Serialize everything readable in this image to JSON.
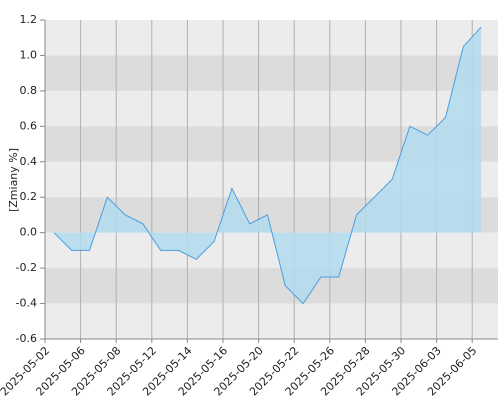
{
  "chart_data": {
    "type": "area",
    "y_label": "[Zmiany %]",
    "categories": [
      "2025-05-02",
      null,
      "2025-05-06",
      null,
      "2025-05-08",
      null,
      "2025-05-12",
      null,
      "2025-05-14",
      null,
      "2025-05-16",
      null,
      "2025-05-20",
      null,
      "2025-05-22",
      null,
      "2025-05-26",
      null,
      "2025-05-28",
      null,
      "2025-05-30",
      null,
      "2025-06-03",
      null,
      "2025-06-05"
    ],
    "values": [
      0,
      -0.1,
      -0.1,
      0.2,
      0.1,
      0.05,
      -0.1,
      -0.1,
      -0.15,
      -0.05,
      0.25,
      0.05,
      0.1,
      -0.3,
      -0.4,
      -0.25,
      -0.25,
      0.1,
      0.2,
      0.3,
      0.6,
      0.55,
      0.65,
      1.05,
      1.16
    ],
    "color": "#4a9ee0",
    "fill": "#b3dcef",
    "ylim": [
      -0.6,
      1.2
    ],
    "yticks": [
      1.2,
      {
        "value": 1,
        "label": "1.0"
      },
      0.8,
      0.6,
      0.4,
      0.2,
      {
        "value": 0,
        "label": "0.0"
      },
      -0.2,
      -0.4,
      -0.6
    ],
    "band_colors": [
      "#ececec",
      "#dcdcdc"
    ],
    "grid": true
  }
}
